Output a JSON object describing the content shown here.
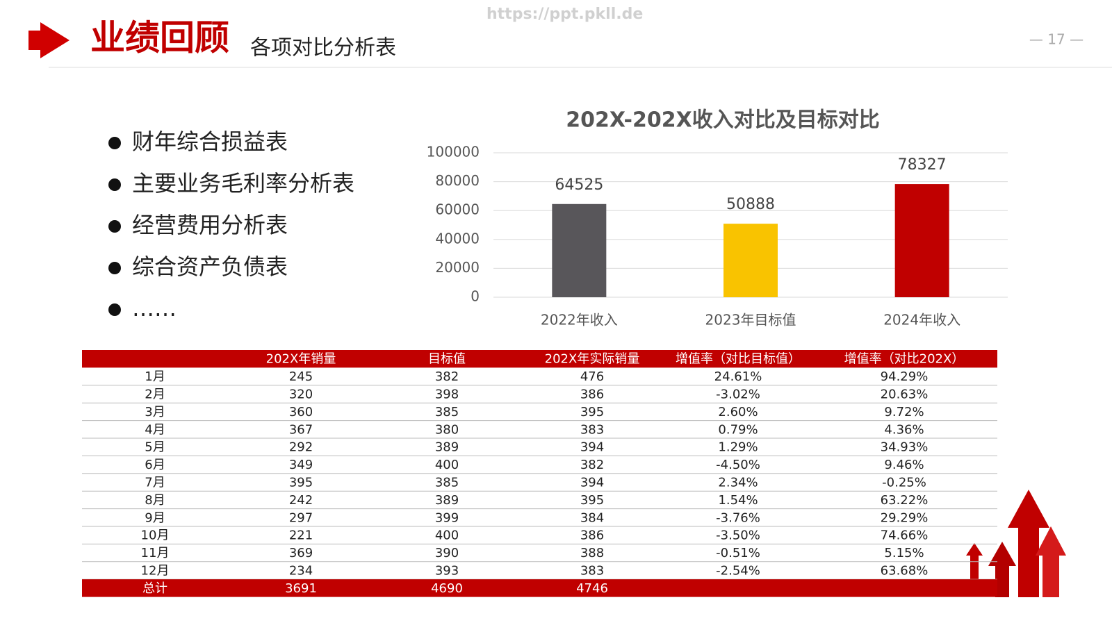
{
  "watermark": "https://ppt.pkll.de",
  "header": {
    "title": "业绩回顾",
    "subtitle": "各项对比分析表",
    "page_number": "— 17 —"
  },
  "bullets": [
    "财年综合损益表",
    "主要业务毛利率分析表",
    "经营费用分析表",
    "综合资产负债表",
    "……"
  ],
  "chart_data": {
    "type": "bar",
    "title": "202X-202X收入对比及目标对比",
    "categories": [
      "2022年收入",
      "2023年目标值",
      "2024年收入"
    ],
    "values": [
      64525,
      50888,
      78327
    ],
    "colors": [
      "#58565a",
      "#f9c300",
      "#c00000"
    ],
    "ylim": [
      0,
      100000
    ],
    "yticks": [
      0,
      20000,
      40000,
      60000,
      80000,
      100000
    ],
    "grid": true
  },
  "table": {
    "columns": [
      "202X年销量",
      "目标值",
      "202X年实际销量",
      "增值率（对比目标值）",
      "增值率（对比202X）"
    ],
    "rows": [
      [
        "1月",
        "245",
        "382",
        "476",
        "24.61%",
        "94.29%"
      ],
      [
        "2月",
        "320",
        "398",
        "386",
        "-3.02%",
        "20.63%"
      ],
      [
        "3月",
        "360",
        "385",
        "395",
        "2.60%",
        "9.72%"
      ],
      [
        "4月",
        "367",
        "380",
        "383",
        "0.79%",
        "4.36%"
      ],
      [
        "5月",
        "292",
        "389",
        "394",
        "1.29%",
        "34.93%"
      ],
      [
        "6月",
        "349",
        "400",
        "382",
        "-4.50%",
        "9.46%"
      ],
      [
        "7月",
        "395",
        "385",
        "394",
        "2.34%",
        "-0.25%"
      ],
      [
        "8月",
        "242",
        "389",
        "395",
        "1.54%",
        "63.22%"
      ],
      [
        "9月",
        "297",
        "399",
        "384",
        "-3.76%",
        "29.29%"
      ],
      [
        "10月",
        "221",
        "400",
        "386",
        "-3.50%",
        "74.66%"
      ],
      [
        "11月",
        "369",
        "390",
        "388",
        "-0.51%",
        "5.15%"
      ],
      [
        "12月",
        "234",
        "393",
        "383",
        "-2.54%",
        "63.68%"
      ]
    ],
    "total": [
      "总计",
      "3691",
      "4690",
      "4746"
    ]
  }
}
